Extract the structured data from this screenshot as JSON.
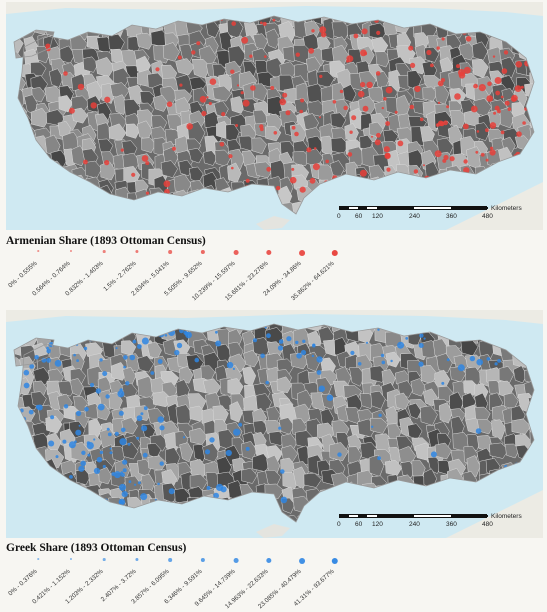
{
  "maps": [
    {
      "title": "Armenian Share (1893 Ottoman Census)",
      "dot_color": "#e8403a",
      "legend_classes": [
        "0% - 0.555%",
        "0.564% - 0.764%",
        "0.832% - 1.403%",
        "1.5% - 2.762%",
        "2.834% - 5.041%",
        "5.505% - 9.652%",
        "10.239% - 15.597%",
        "15.681% - 23.276%",
        "24.09% - 34.86%",
        "35.862% - 64.621%"
      ]
    },
    {
      "title": "Greek Share (1893 Ottoman Census)",
      "dot_color": "#2f86e3",
      "legend_classes": [
        "0% - 0.376%",
        "0.421% - 1.152%",
        "1.203% - 2.332%",
        "2.407% - 3.72%",
        "3.857% - 6.095%",
        "6.346% - 9.591%",
        "9.645% - 14.739%",
        "14.963% - 22.633%",
        "23.085% - 40.479%",
        "41.31% - 93.677%"
      ]
    }
  ],
  "scale_bar": {
    "ticks": [
      "0",
      "60",
      "120",
      "240",
      "360",
      "480"
    ],
    "unit": "Kilometers"
  }
}
